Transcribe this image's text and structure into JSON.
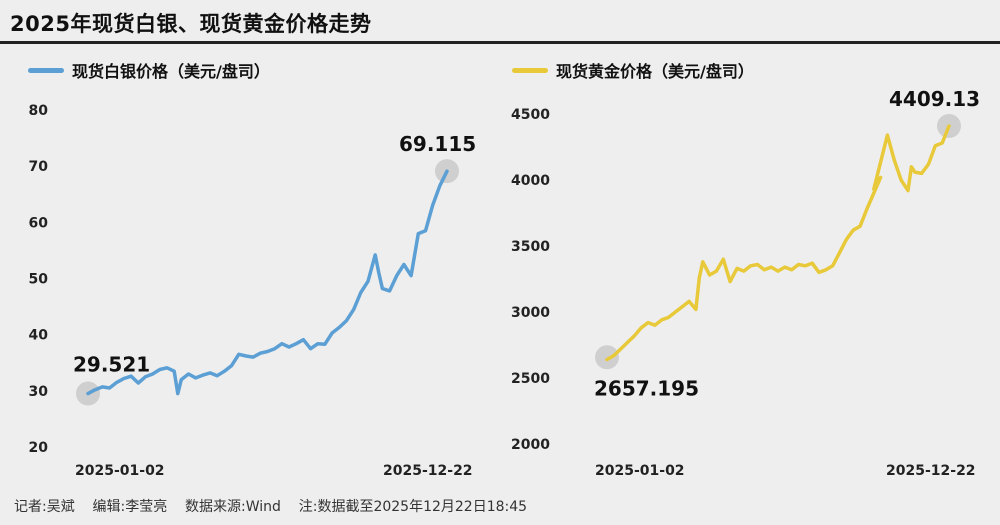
{
  "page_title": "2025年现货白银、现货黄金价格走势",
  "footer_text": "记者:吴斌    编辑:李莹亮    数据来源:Wind    注:数据截至2025年12月22日18:45",
  "chart_data": [
    {
      "type": "line",
      "legend": "现货白银价格（美元/盘司）",
      "color": "#5b9fd4",
      "ylim": [
        20,
        80
      ],
      "yticks": [
        20,
        30,
        40,
        50,
        60,
        70,
        80
      ],
      "xlabels": [
        "2025-01-02",
        "2025-12-22"
      ],
      "grid": false,
      "start": {
        "label": "29.521",
        "value": 29.521
      },
      "end": {
        "label": "69.115",
        "value": 69.115
      },
      "series": [
        {
          "x": [
            0,
            0.02,
            0.04,
            0.06,
            0.08,
            0.1,
            0.12,
            0.14,
            0.16,
            0.18,
            0.2,
            0.22,
            0.24,
            0.25,
            0.26,
            0.28,
            0.3,
            0.32,
            0.34,
            0.36,
            0.38,
            0.4,
            0.42,
            0.44,
            0.46,
            0.48,
            0.5,
            0.52,
            0.54,
            0.56,
            0.58,
            0.6,
            0.62,
            0.64,
            0.66,
            0.68,
            0.7,
            0.72,
            0.74,
            0.76,
            0.78,
            0.8,
            0.81,
            0.82,
            0.84,
            0.86,
            0.88,
            0.9,
            0.92,
            0.94,
            0.96,
            0.98,
            1.0
          ],
          "y": [
            29.5,
            30.2,
            30.7,
            30.5,
            31.5,
            32.2,
            32.6,
            31.4,
            32.5,
            33.0,
            33.8,
            34.1,
            33.5,
            29.5,
            32.0,
            33.0,
            32.3,
            32.8,
            33.2,
            32.7,
            33.5,
            34.5,
            36.5,
            36.2,
            36.0,
            36.7,
            37.0,
            37.5,
            38.4,
            37.8,
            38.4,
            39.1,
            37.5,
            38.4,
            38.3,
            40.3,
            41.3,
            42.5,
            44.5,
            47.5,
            49.5,
            54.2,
            51.0,
            48.2,
            47.8,
            50.5,
            52.5,
            50.5,
            58.0,
            58.5,
            63.0,
            66.5,
            69.1
          ]
        }
      ]
    },
    {
      "type": "line",
      "legend": "现货黄金价格（美元/盘司）",
      "color": "#e8c93a",
      "ylim": [
        2000,
        4500
      ],
      "yticks": [
        2000,
        2500,
        3000,
        3500,
        4000,
        4500
      ],
      "xlabels": [
        "2025-01-02",
        "2025-12-22"
      ],
      "grid": false,
      "start": {
        "label": "2657.195",
        "value": 2657.195
      },
      "end": {
        "label": "4409.13",
        "value": 4409.13
      },
      "series": [
        {
          "x": [
            0,
            0.02,
            0.04,
            0.06,
            0.08,
            0.1,
            0.12,
            0.14,
            0.16,
            0.18,
            0.2,
            0.22,
            0.24,
            0.26,
            0.27,
            0.28,
            0.3,
            0.32,
            0.34,
            0.36,
            0.38,
            0.4,
            0.42,
            0.44,
            0.46,
            0.48,
            0.5,
            0.52,
            0.54,
            0.56,
            0.58,
            0.6,
            0.62,
            0.64,
            0.66,
            0.68,
            0.7,
            0.72,
            0.74,
            0.76,
            0.8,
            0.78,
            0.82,
            0.84,
            0.86,
            0.88,
            0.89,
            0.9,
            0.92,
            0.94,
            0.96,
            0.98,
            1.0
          ],
          "y": [
            2640,
            2670,
            2720,
            2770,
            2820,
            2880,
            2920,
            2900,
            2940,
            2960,
            3000,
            3040,
            3080,
            3020,
            3260,
            3380,
            3280,
            3310,
            3400,
            3230,
            3330,
            3310,
            3350,
            3360,
            3320,
            3340,
            3310,
            3340,
            3320,
            3360,
            3350,
            3370,
            3300,
            3320,
            3350,
            3450,
            3550,
            3620,
            3650,
            3780,
            4020,
            3930,
            4340,
            4150,
            4000,
            3920,
            4100,
            4060,
            4050,
            4120,
            4260,
            4280,
            4409
          ]
        }
      ]
    }
  ]
}
